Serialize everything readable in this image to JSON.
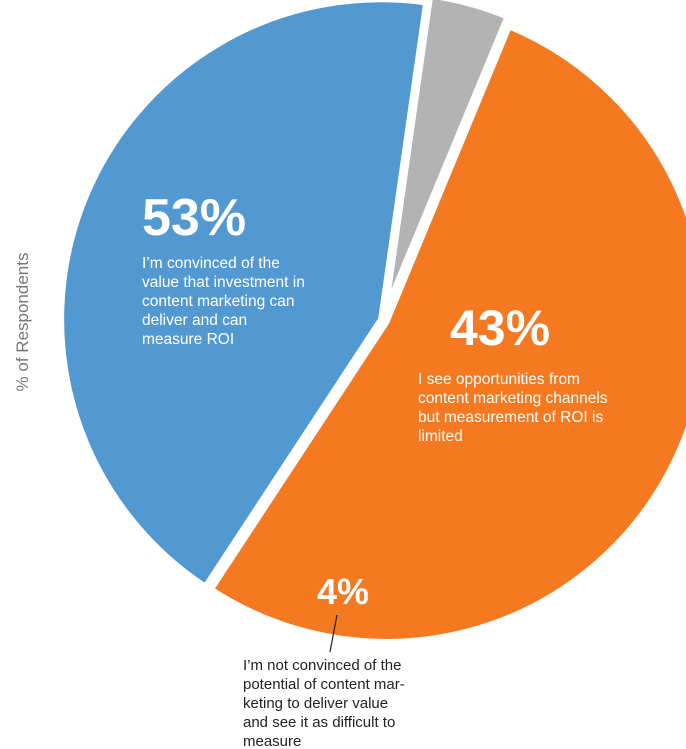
{
  "chart_data": {
    "type": "pie",
    "ylabel": "% of Respondents",
    "slices": [
      {
        "label": "I'm convinced of the value that investment in content marketing can deliver and can measure ROI",
        "value": 53,
        "value_label": "53%",
        "color": "#f47920",
        "desc_lines": [
          "I’m convinced of the",
          "value that investment in",
          "content marketing can",
          "deliver and can",
          "measure ROI"
        ]
      },
      {
        "label": "I see opportunities from content marketing channels but measurement of ROI is limited",
        "value": 43,
        "value_label": "43%",
        "color": "#5399d1",
        "desc_lines": [
          "I see opportunities from",
          "content marketing channels",
          "but measurement of ROI is",
          "limited"
        ]
      },
      {
        "label": "I'm not convinced of the potential of content marketing to deliver value and see it as difficult to measure",
        "value": 4,
        "value_label": "4%",
        "color": "#b3b3b3",
        "desc_lines": [
          "I’m not convinced of the",
          "potential of content mar-",
          "keting to deliver value",
          "and see it as difficult to",
          "measure"
        ]
      }
    ]
  }
}
